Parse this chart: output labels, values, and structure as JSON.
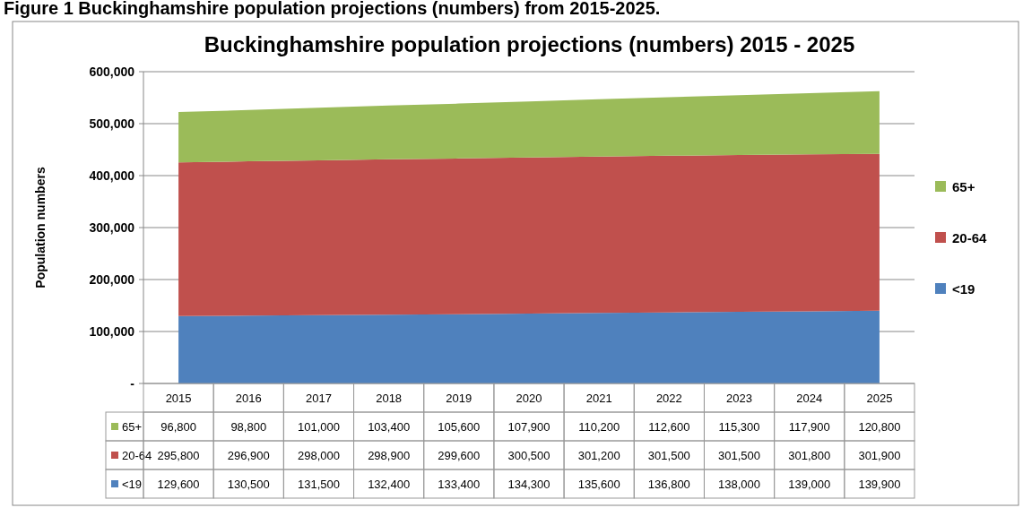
{
  "chart_data": {
    "type": "area",
    "title": "Buckinghamshire population projections (numbers) 2015 - 2025",
    "ylabel": "Population numbers",
    "annotations": [
      "Figure 1 Buckinghamshire population projections (numbers) from 2015-2025."
    ],
    "categories": [
      "2015",
      "2016",
      "2017",
      "2018",
      "2019",
      "2020",
      "2021",
      "2022",
      "2023",
      "2024",
      "2025"
    ],
    "stacked": true,
    "series": [
      {
        "name": "<19",
        "color": "#4f81bd",
        "values": [
          129600,
          130500,
          131500,
          132400,
          133400,
          134300,
          135600,
          136800,
          138000,
          139000,
          139900
        ],
        "value_labels": [
          "129,600",
          "130,500",
          "131,500",
          "132,400",
          "133,400",
          "134,300",
          "135,600",
          "136,800",
          "138,000",
          "139,000",
          "139,900"
        ]
      },
      {
        "name": "20-64",
        "color": "#c0504d",
        "values": [
          295800,
          296900,
          298000,
          298900,
          299600,
          300500,
          301200,
          301500,
          301500,
          301800,
          301900
        ],
        "value_labels": [
          "295,800",
          "296,900",
          "298,000",
          "298,900",
          "299,600",
          "300,500",
          "301,200",
          "301,500",
          "301,500",
          "301,800",
          "301,900"
        ]
      },
      {
        "name": "65+",
        "color": "#9bbb59",
        "values": [
          96800,
          98800,
          101000,
          103400,
          105600,
          107900,
          110200,
          112600,
          115300,
          117900,
          120800
        ],
        "value_labels": [
          "96,800",
          "98,800",
          "101,000",
          "103,400",
          "105,600",
          "107,900",
          "110,200",
          "112,600",
          "115,300",
          "117,900",
          "120,800"
        ]
      }
    ],
    "ylim": [
      0,
      600000
    ],
    "yticks": [
      {
        "value": 0,
        "label": "-"
      },
      {
        "value": 100000,
        "label": "100,000"
      },
      {
        "value": 200000,
        "label": "200,000"
      },
      {
        "value": 300000,
        "label": "300,000"
      },
      {
        "value": 400000,
        "label": "400,000"
      },
      {
        "value": 500000,
        "label": "500,000"
      },
      {
        "value": 600000,
        "label": "600,000"
      }
    ],
    "grid": "y",
    "legend": "right"
  }
}
